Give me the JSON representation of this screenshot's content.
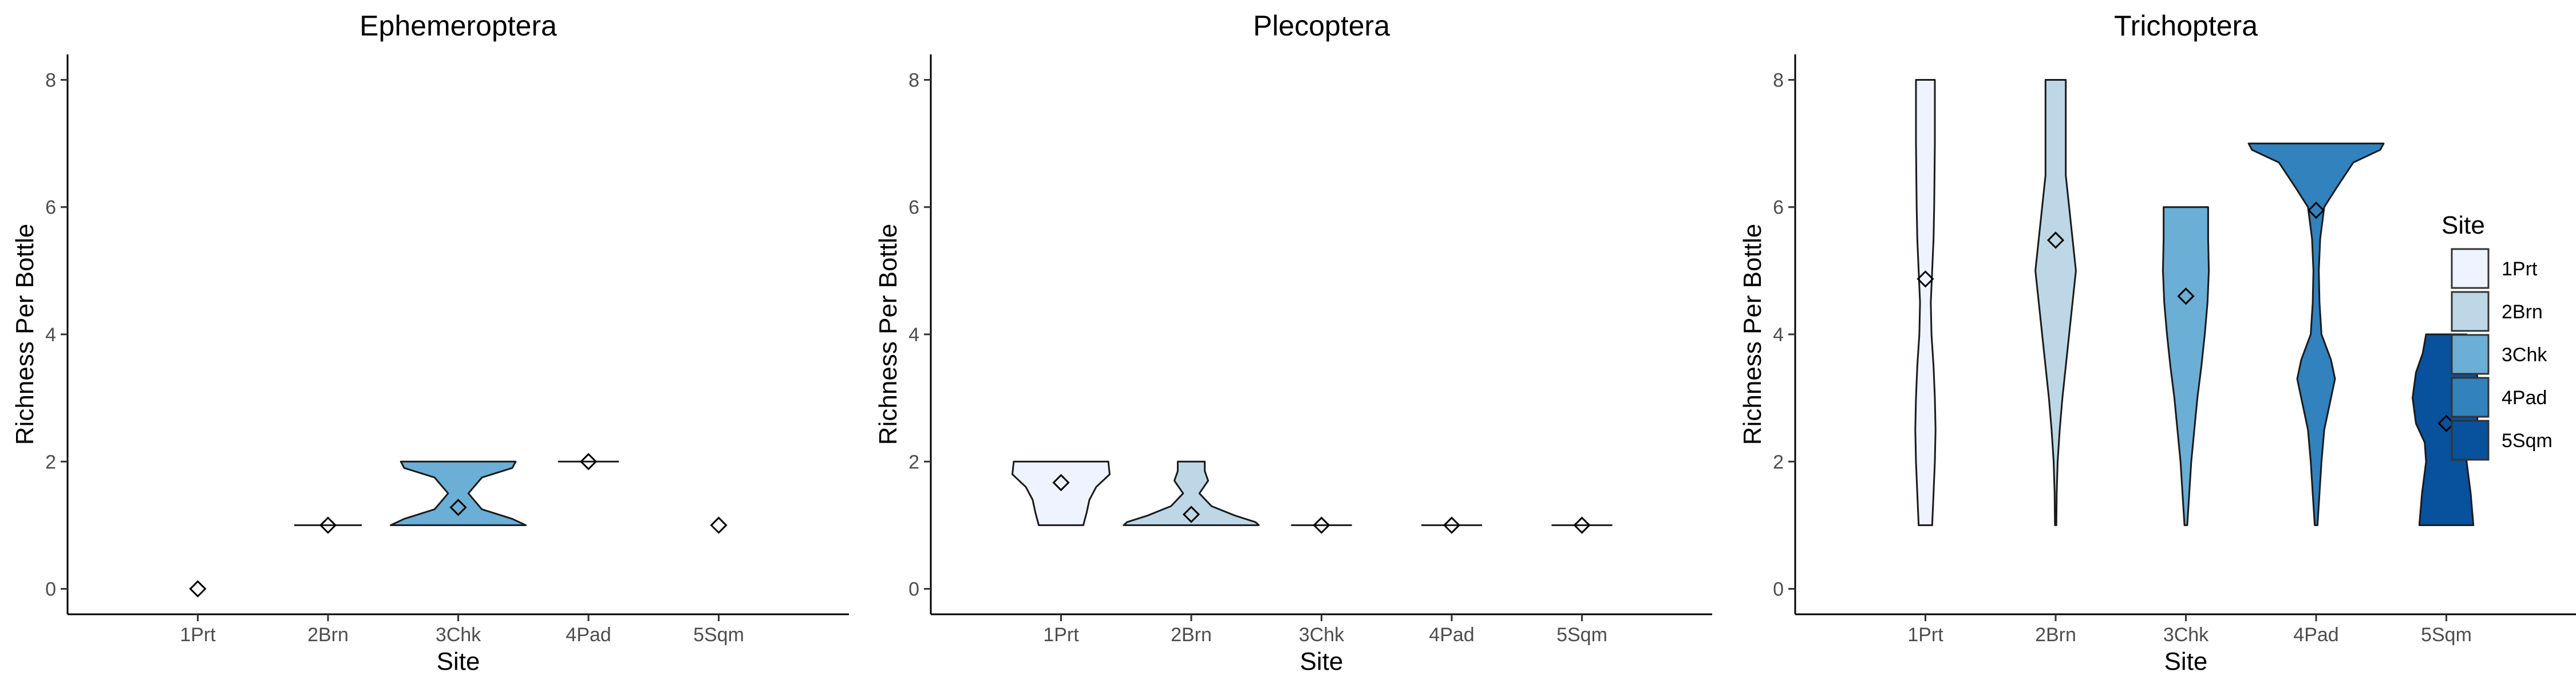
{
  "chart_data": {
    "type": "violin",
    "categories": [
      "1Prt",
      "2Brn",
      "3Chk",
      "4Pad",
      "5Sqm"
    ],
    "xlabel": "Site",
    "ylabel": "Richness Per Bottle",
    "ylim": [
      -0.4,
      8.4
    ],
    "yticks": [
      0,
      2,
      4,
      6,
      8
    ],
    "grid": false,
    "legend": {
      "title": "Site",
      "position": "right",
      "items": [
        "1Prt",
        "2Brn",
        "3Chk",
        "4Pad",
        "5Sqm"
      ]
    },
    "colors": {
      "1Prt": "#eff3ff",
      "2Brn": "#bdd7e7",
      "3Chk": "#6baed6",
      "4Pad": "#3182bd",
      "5Sqm": "#08519c"
    },
    "panels": [
      {
        "title": "Ephemeroptera",
        "sites": [
          {
            "site": "1Prt",
            "mean": 0,
            "violin": []
          },
          {
            "site": "2Brn",
            "mean": 1,
            "violin": [
              [
                1,
                0.5
              ]
            ]
          },
          {
            "site": "3Chk",
            "mean": 1.28,
            "violin": [
              [
                1,
                1
              ],
              [
                1.1,
                0.8
              ],
              [
                1.25,
                0.35
              ],
              [
                1.5,
                0.15
              ],
              [
                1.75,
                0.35
              ],
              [
                1.9,
                0.8
              ],
              [
                2,
                0.85
              ]
            ]
          },
          {
            "site": "4Pad",
            "mean": 2,
            "violin": [
              [
                2,
                0.45
              ]
            ]
          },
          {
            "site": "5Sqm",
            "mean": 1,
            "violin": []
          }
        ]
      },
      {
        "title": "Plecoptera",
        "sites": [
          {
            "site": "1Prt",
            "mean": 1.67,
            "violin": [
              [
                1,
                0.33
              ],
              [
                1.2,
                0.38
              ],
              [
                1.4,
                0.42
              ],
              [
                1.6,
                0.52
              ],
              [
                1.8,
                0.72
              ],
              [
                2,
                0.7
              ]
            ]
          },
          {
            "site": "2Brn",
            "mean": 1.17,
            "violin": [
              [
                1,
                1
              ],
              [
                1.05,
                0.95
              ],
              [
                1.15,
                0.65
              ],
              [
                1.3,
                0.3
              ],
              [
                1.5,
                0.12
              ],
              [
                1.7,
                0.25
              ],
              [
                1.85,
                0.2
              ],
              [
                2,
                0.2
              ]
            ]
          },
          {
            "site": "3Chk",
            "mean": 1,
            "violin": [
              [
                1,
                0.45
              ]
            ]
          },
          {
            "site": "4Pad",
            "mean": 1,
            "violin": [
              [
                1,
                0.45
              ]
            ]
          },
          {
            "site": "5Sqm",
            "mean": 1,
            "violin": [
              [
                1,
                0.45
              ]
            ]
          }
        ]
      },
      {
        "title": "Trichoptera",
        "sites": [
          {
            "site": "1Prt",
            "mean": 4.87,
            "violin": [
              [
                1,
                0.1
              ],
              [
                1.5,
                0.12
              ],
              [
                2,
                0.14
              ],
              [
                2.5,
                0.15
              ],
              [
                3,
                0.14
              ],
              [
                3.5,
                0.12
              ],
              [
                4,
                0.09
              ],
              [
                4.5,
                0.08
              ],
              [
                5,
                0.1
              ],
              [
                5.5,
                0.12
              ],
              [
                6,
                0.13
              ],
              [
                7,
                0.14
              ],
              [
                8,
                0.14
              ]
            ]
          },
          {
            "site": "2Brn",
            "mean": 5.48,
            "violin": [
              [
                1,
                0.01
              ],
              [
                1.5,
                0.015
              ],
              [
                2,
                0.03
              ],
              [
                2.5,
                0.06
              ],
              [
                3,
                0.1
              ],
              [
                3.5,
                0.15
              ],
              [
                4,
                0.2
              ],
              [
                4.5,
                0.25
              ],
              [
                5,
                0.3
              ],
              [
                5.5,
                0.25
              ],
              [
                6,
                0.2
              ],
              [
                6.5,
                0.15
              ],
              [
                7,
                0.15
              ],
              [
                7.5,
                0.15
              ],
              [
                8,
                0.15
              ]
            ]
          },
          {
            "site": "3Chk",
            "mean": 4.6,
            "violin": [
              [
                1,
                0.02
              ],
              [
                2,
                0.08
              ],
              [
                3,
                0.17
              ],
              [
                3.5,
                0.23
              ],
              [
                4,
                0.28
              ],
              [
                4.5,
                0.32
              ],
              [
                5,
                0.34
              ],
              [
                5.5,
                0.33
              ],
              [
                6,
                0.33
              ]
            ]
          },
          {
            "site": "4Pad",
            "mean": 5.95,
            "violin": [
              [
                1,
                0.02
              ],
              [
                2,
                0.08
              ],
              [
                2.5,
                0.12
              ],
              [
                3,
                0.22
              ],
              [
                3.3,
                0.28
              ],
              [
                3.6,
                0.22
              ],
              [
                4,
                0.08
              ],
              [
                4.5,
                0.05
              ],
              [
                5,
                0.04
              ],
              [
                5.5,
                0.06
              ],
              [
                6,
                0.12
              ],
              [
                6.3,
                0.3
              ],
              [
                6.7,
                0.55
              ],
              [
                6.9,
                0.95
              ],
              [
                7,
                1
              ]
            ]
          },
          {
            "site": "5Sqm",
            "mean": 2.6,
            "violin": [
              [
                1,
                0.4
              ],
              [
                1.5,
                0.36
              ],
              [
                2,
                0.3
              ],
              [
                2.3,
                0.32
              ],
              [
                2.6,
                0.45
              ],
              [
                3,
                0.5
              ],
              [
                3.4,
                0.45
              ],
              [
                3.7,
                0.35
              ],
              [
                4,
                0.3
              ]
            ]
          }
        ]
      }
    ]
  }
}
